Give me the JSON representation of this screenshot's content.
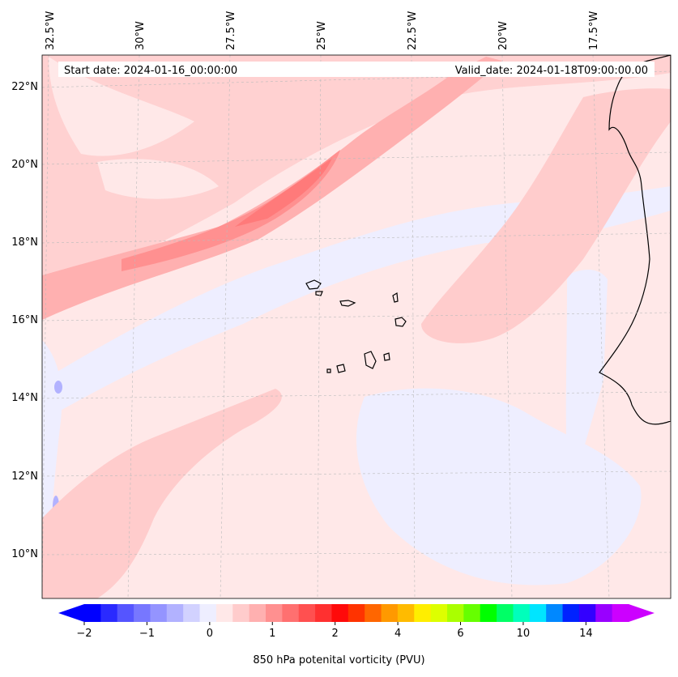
{
  "map": {
    "start_date": "Start date: 2024-01-16_00:00:00",
    "valid_date": "Valid_date: 2024-01-18T09:00:00.00",
    "lon_labels": [
      "32.5°W",
      "30°W",
      "27.5°W",
      "25°W",
      "22.5°W",
      "20°W",
      "17.5°W"
    ],
    "lat_labels": [
      "22°N",
      "20°N",
      "18°N",
      "16°N",
      "14°N",
      "12°N",
      "10°N"
    ]
  },
  "colorbar": {
    "title": "850 hPa potenital vorticity (PVU)",
    "tick_labels": [
      "−2",
      "−1",
      "0",
      "1",
      "2",
      "4",
      "6",
      "10",
      "14"
    ],
    "colors": [
      "#0000ff",
      "#2a2aff",
      "#5555ff",
      "#7777ff",
      "#9494ff",
      "#b2b2ff",
      "#d2d2ff",
      "#eeeeff",
      "#ffe8e8",
      "#ffcccc",
      "#ffb0b0",
      "#ff9090",
      "#ff7070",
      "#ff5050",
      "#ff3030",
      "#ff0a0a",
      "#ff3300",
      "#ff6600",
      "#ff9900",
      "#ffbb00",
      "#ffee00",
      "#ddff00",
      "#aaff00",
      "#66ff00",
      "#00ff00",
      "#00ff66",
      "#00ffbb",
      "#00e5ff",
      "#0088ff",
      "#0022ff",
      "#3300ff",
      "#9900ff",
      "#cc00ff"
    ]
  }
}
